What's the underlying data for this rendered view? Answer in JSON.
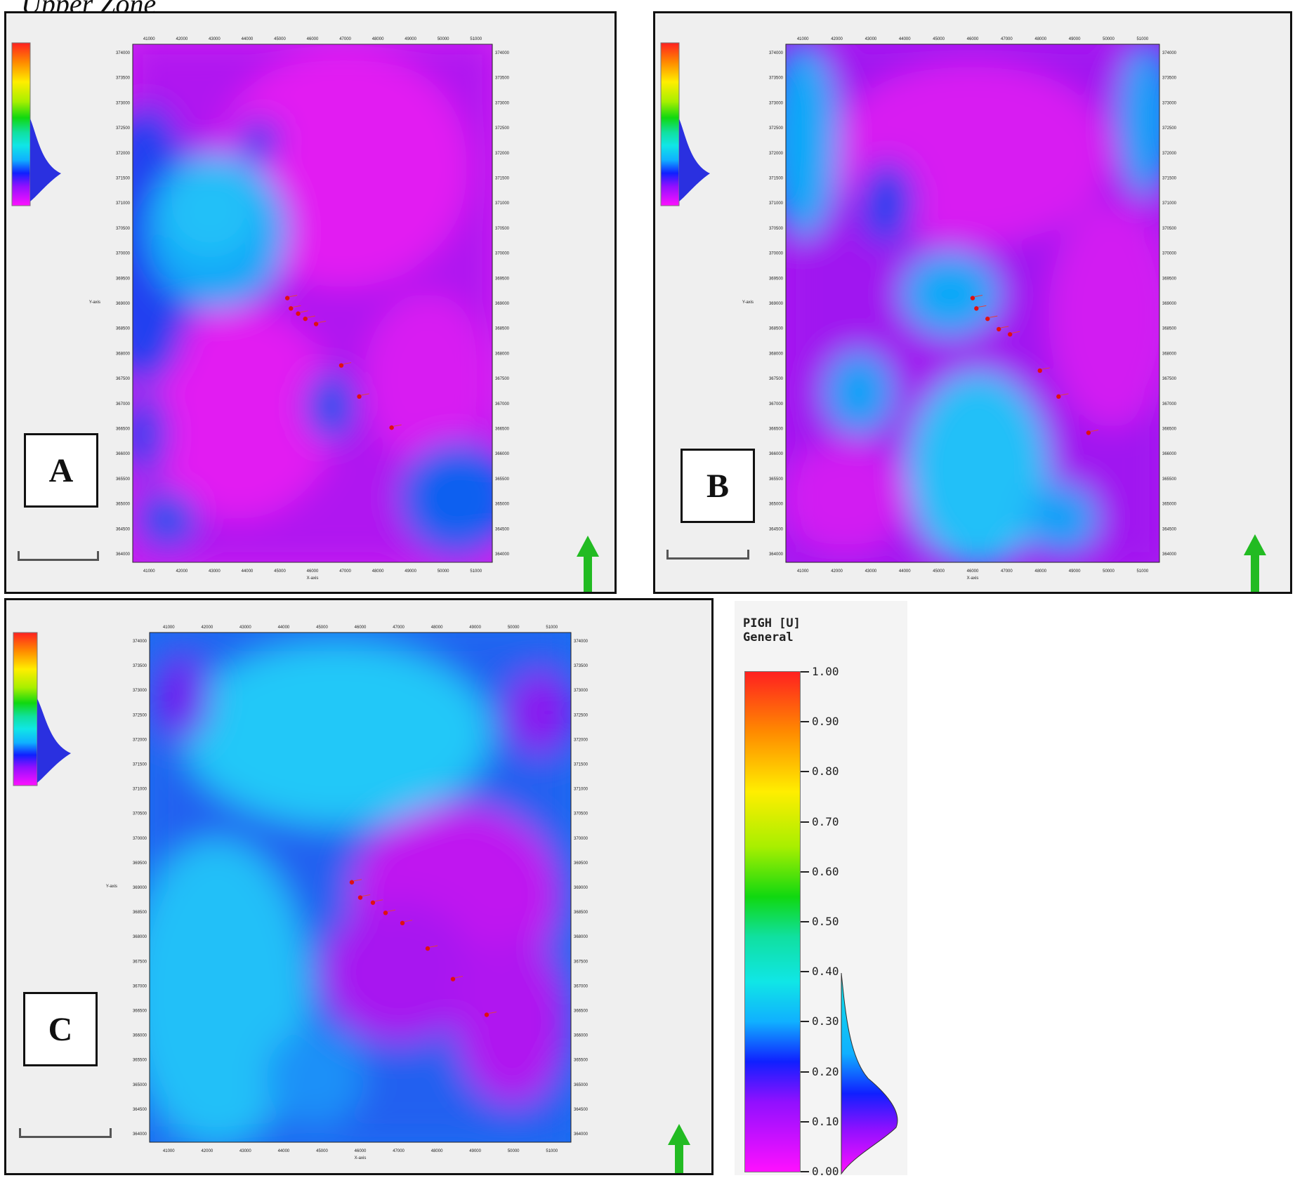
{
  "heading": "Upper Zone",
  "panels": [
    {
      "label": "A",
      "x_axis_title": "X-axis",
      "y_axis_title": "Y-axis"
    },
    {
      "label": "B",
      "x_axis_title": "X-axis",
      "y_axis_title": "Y-axis"
    },
    {
      "label": "C",
      "x_axis_title": "X-axis",
      "y_axis_title": "Y-axis"
    }
  ],
  "x_ticks": [
    "41000",
    "42000",
    "43000",
    "44000",
    "45000",
    "46000",
    "47000",
    "48000",
    "49000",
    "50000",
    "51000"
  ],
  "y_ticks": [
    "374000",
    "373500",
    "373000",
    "372500",
    "372000",
    "371500",
    "371000",
    "370500",
    "370000",
    "369500",
    "369000",
    "368500",
    "368000",
    "367500",
    "367000",
    "366500",
    "366000",
    "365500",
    "365000",
    "364500",
    "364000"
  ],
  "legend": {
    "title": "PIGH [U]",
    "subtitle": "General",
    "ticks": [
      "1.00",
      "0.90",
      "0.80",
      "0.70",
      "0.60",
      "0.50",
      "0.40",
      "0.30",
      "0.20",
      "0.10",
      "0.00"
    ]
  },
  "colors": {
    "well_marker": "#e01010",
    "north_arrow": "#22bb22",
    "frame": "#111111"
  },
  "icons": {
    "north_arrow": "north-arrow-icon",
    "well": "well-marker-icon"
  }
}
